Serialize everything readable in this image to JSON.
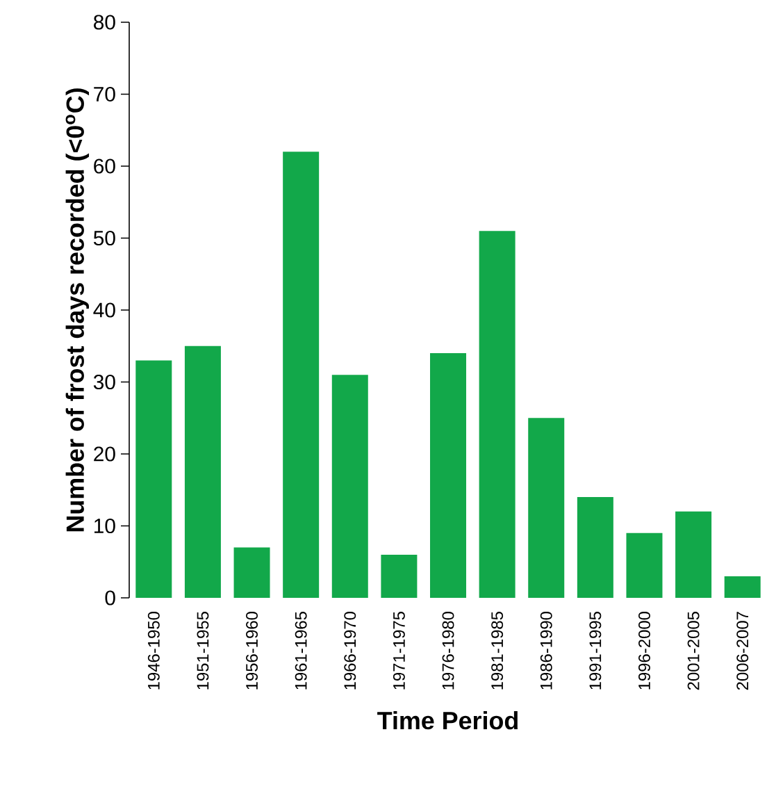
{
  "chart_data": {
    "type": "bar",
    "xlabel": "Time Period",
    "ylabel": "Number of frost days recorded (<0$^{o}$C)",
    "categories": [
      "1946-1950",
      "1951-1955",
      "1956-1960",
      "1961-1965",
      "1966-1970",
      "1971-1975",
      "1976-1980",
      "1981-1985",
      "1986-1990",
      "1991-1995",
      "1996-2000",
      "2001-2005",
      "2006-2007"
    ],
    "values": [
      33,
      35,
      7,
      62,
      31,
      6,
      34,
      51,
      25,
      14,
      9,
      12,
      3
    ],
    "color": "#12a84a",
    "ylim": [
      0,
      80
    ],
    "yticks": [
      0,
      10,
      20,
      30,
      40,
      50,
      60,
      70,
      80
    ],
    "grid": false
  }
}
